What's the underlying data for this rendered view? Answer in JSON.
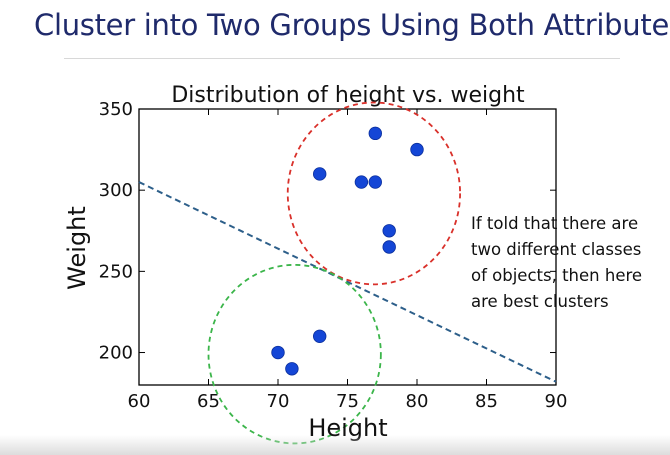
{
  "slide": {
    "title": "Cluster into Two Groups Using Both Attributes",
    "note": "If told that there are two different classes of objects, then here are best clusters"
  },
  "chart_data": {
    "type": "scatter",
    "title": "Distribution of height vs. weight",
    "xlabel": "Height",
    "ylabel": "Weight",
    "xlim": [
      60,
      90
    ],
    "ylim": [
      180,
      350
    ],
    "xticks": [
      60,
      65,
      70,
      75,
      80,
      85,
      90
    ],
    "yticks": [
      200,
      250,
      300,
      350
    ],
    "grid": false,
    "point_color": "#1446d6",
    "points": [
      {
        "x": 70,
        "y": 200
      },
      {
        "x": 71,
        "y": 190
      },
      {
        "x": 73,
        "y": 210
      },
      {
        "x": 73,
        "y": 310
      },
      {
        "x": 76,
        "y": 305
      },
      {
        "x": 77,
        "y": 305
      },
      {
        "x": 77,
        "y": 335
      },
      {
        "x": 78,
        "y": 275
      },
      {
        "x": 78,
        "y": 265
      },
      {
        "x": 80,
        "y": 325
      }
    ],
    "separator_line": {
      "color": "#2d5f8a",
      "style": "dashed",
      "points": [
        {
          "x": 60,
          "y": 305
        },
        {
          "x": 90,
          "y": 182
        }
      ]
    },
    "cluster_circles": [
      {
        "color": "#d9302a",
        "center": {
          "x": 76.9,
          "y": 298
        },
        "radius_x": 6.2,
        "radius_y": 56
      },
      {
        "color": "#3bb54a",
        "center": {
          "x": 71.2,
          "y": 199
        },
        "radius_x": 6.2,
        "radius_y": 55
      }
    ]
  }
}
